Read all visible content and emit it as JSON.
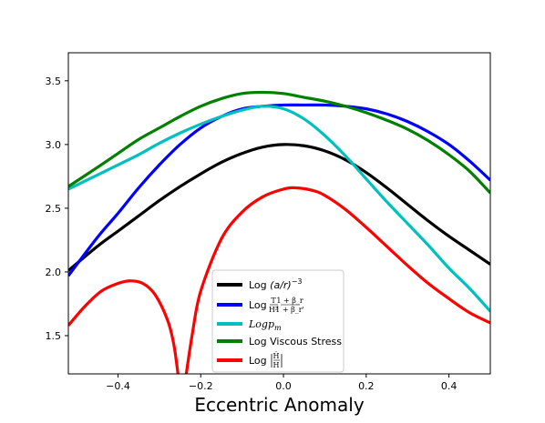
{
  "chart_data": {
    "type": "line",
    "title": "",
    "xlabel": "Eccentric Anomaly",
    "ylabel": "",
    "xlim": [
      -0.52,
      0.5
    ],
    "ylim": [
      1.2,
      3.72
    ],
    "xticks": [
      "−0.4",
      "−0.2",
      "0.0",
      "0.2",
      "0.4"
    ],
    "xtick_values": [
      -0.4,
      -0.2,
      0.0,
      0.2,
      0.4
    ],
    "yticks": [
      "1.5",
      "2.0",
      "2.5",
      "3.0",
      "3.5"
    ],
    "ytick_values": [
      1.5,
      2.0,
      2.5,
      3.0,
      3.5
    ],
    "grid": false,
    "legend_position": "lower-center",
    "series": [
      {
        "name": "Log (a/r)^-3",
        "color": "#000000",
        "x": [
          -0.52,
          -0.45,
          -0.4,
          -0.35,
          -0.3,
          -0.25,
          -0.2,
          -0.15,
          -0.1,
          -0.05,
          0.0,
          0.05,
          0.1,
          0.15,
          0.2,
          0.25,
          0.3,
          0.35,
          0.4,
          0.45,
          0.5
        ],
        "y": [
          2.01,
          2.2,
          2.32,
          2.44,
          2.56,
          2.67,
          2.77,
          2.86,
          2.93,
          2.98,
          3.0,
          2.99,
          2.95,
          2.88,
          2.78,
          2.66,
          2.53,
          2.4,
          2.28,
          2.17,
          2.06
        ]
      },
      {
        "name": "Log (T/H^2)(1+β_r)/(1+β_r')",
        "color": "#0000ff",
        "x": [
          -0.52,
          -0.45,
          -0.4,
          -0.35,
          -0.3,
          -0.25,
          -0.2,
          -0.15,
          -0.1,
          -0.05,
          0.0,
          0.05,
          0.1,
          0.15,
          0.2,
          0.25,
          0.3,
          0.35,
          0.4,
          0.45,
          0.5
        ],
        "y": [
          1.97,
          2.27,
          2.46,
          2.66,
          2.84,
          3.0,
          3.13,
          3.22,
          3.28,
          3.3,
          3.31,
          3.31,
          3.31,
          3.3,
          3.28,
          3.24,
          3.18,
          3.1,
          3.0,
          2.87,
          2.72
        ]
      },
      {
        "name": "Log p_m",
        "color": "#00bfbf",
        "x": [
          -0.52,
          -0.45,
          -0.4,
          -0.35,
          -0.3,
          -0.25,
          -0.2,
          -0.15,
          -0.1,
          -0.05,
          0.0,
          0.05,
          0.1,
          0.15,
          0.2,
          0.25,
          0.3,
          0.35,
          0.4,
          0.45,
          0.5
        ],
        "y": [
          2.65,
          2.76,
          2.84,
          2.92,
          3.01,
          3.09,
          3.16,
          3.22,
          3.27,
          3.3,
          3.28,
          3.2,
          3.07,
          2.91,
          2.73,
          2.55,
          2.38,
          2.21,
          2.03,
          1.87,
          1.69
        ]
      },
      {
        "name": "Log Viscous Stress",
        "color": "#008000",
        "x": [
          -0.52,
          -0.45,
          -0.4,
          -0.35,
          -0.3,
          -0.25,
          -0.2,
          -0.15,
          -0.1,
          -0.05,
          0.0,
          0.05,
          0.1,
          0.15,
          0.2,
          0.25,
          0.3,
          0.35,
          0.4,
          0.45,
          0.5
        ],
        "y": [
          2.67,
          2.82,
          2.93,
          3.04,
          3.13,
          3.22,
          3.3,
          3.36,
          3.4,
          3.41,
          3.4,
          3.37,
          3.34,
          3.3,
          3.25,
          3.19,
          3.12,
          3.03,
          2.92,
          2.79,
          2.62
        ]
      },
      {
        "name": "Log |Ḣ/H|",
        "color": "#ff0000",
        "segments": [
          {
            "x": [
              -0.52,
              -0.48,
              -0.44,
              -0.4,
              -0.37,
              -0.34,
              -0.31,
              -0.28,
              -0.265,
              -0.255
            ],
            "y": [
              1.58,
              1.73,
              1.85,
              1.91,
              1.93,
              1.91,
              1.82,
              1.62,
              1.43,
              1.2
            ]
          },
          {
            "x": [
              -0.235,
              -0.22,
              -0.2,
              -0.15,
              -0.1,
              -0.05,
              0.0,
              0.03,
              0.07,
              0.1,
              0.15,
              0.2,
              0.25,
              0.3,
              0.35,
              0.4,
              0.45,
              0.5
            ],
            "y": [
              1.2,
              1.52,
              1.85,
              2.26,
              2.47,
              2.59,
              2.65,
              2.66,
              2.64,
              2.6,
              2.49,
              2.35,
              2.2,
              2.05,
              1.91,
              1.79,
              1.68,
              1.6
            ]
          }
        ]
      }
    ]
  },
  "legend": {
    "entries": [
      {
        "prefix": "Log",
        "text": "(a/r)",
        "sup": "−3",
        "color": "#000000"
      },
      {
        "prefix": "Log",
        "frac1_num": "T",
        "frac1_den": "H²",
        "frac2_num": "1 + β_r",
        "frac2_den": "1 + β_r'",
        "color": "#0000ff"
      },
      {
        "text": "Logp",
        "sub": "m",
        "color": "#00bfbf"
      },
      {
        "text": "Log Viscous Stress",
        "color": "#008000"
      },
      {
        "prefix": "Log",
        "abs_num": "Ḣ",
        "abs_den": "H",
        "color": "#ff0000"
      }
    ]
  }
}
